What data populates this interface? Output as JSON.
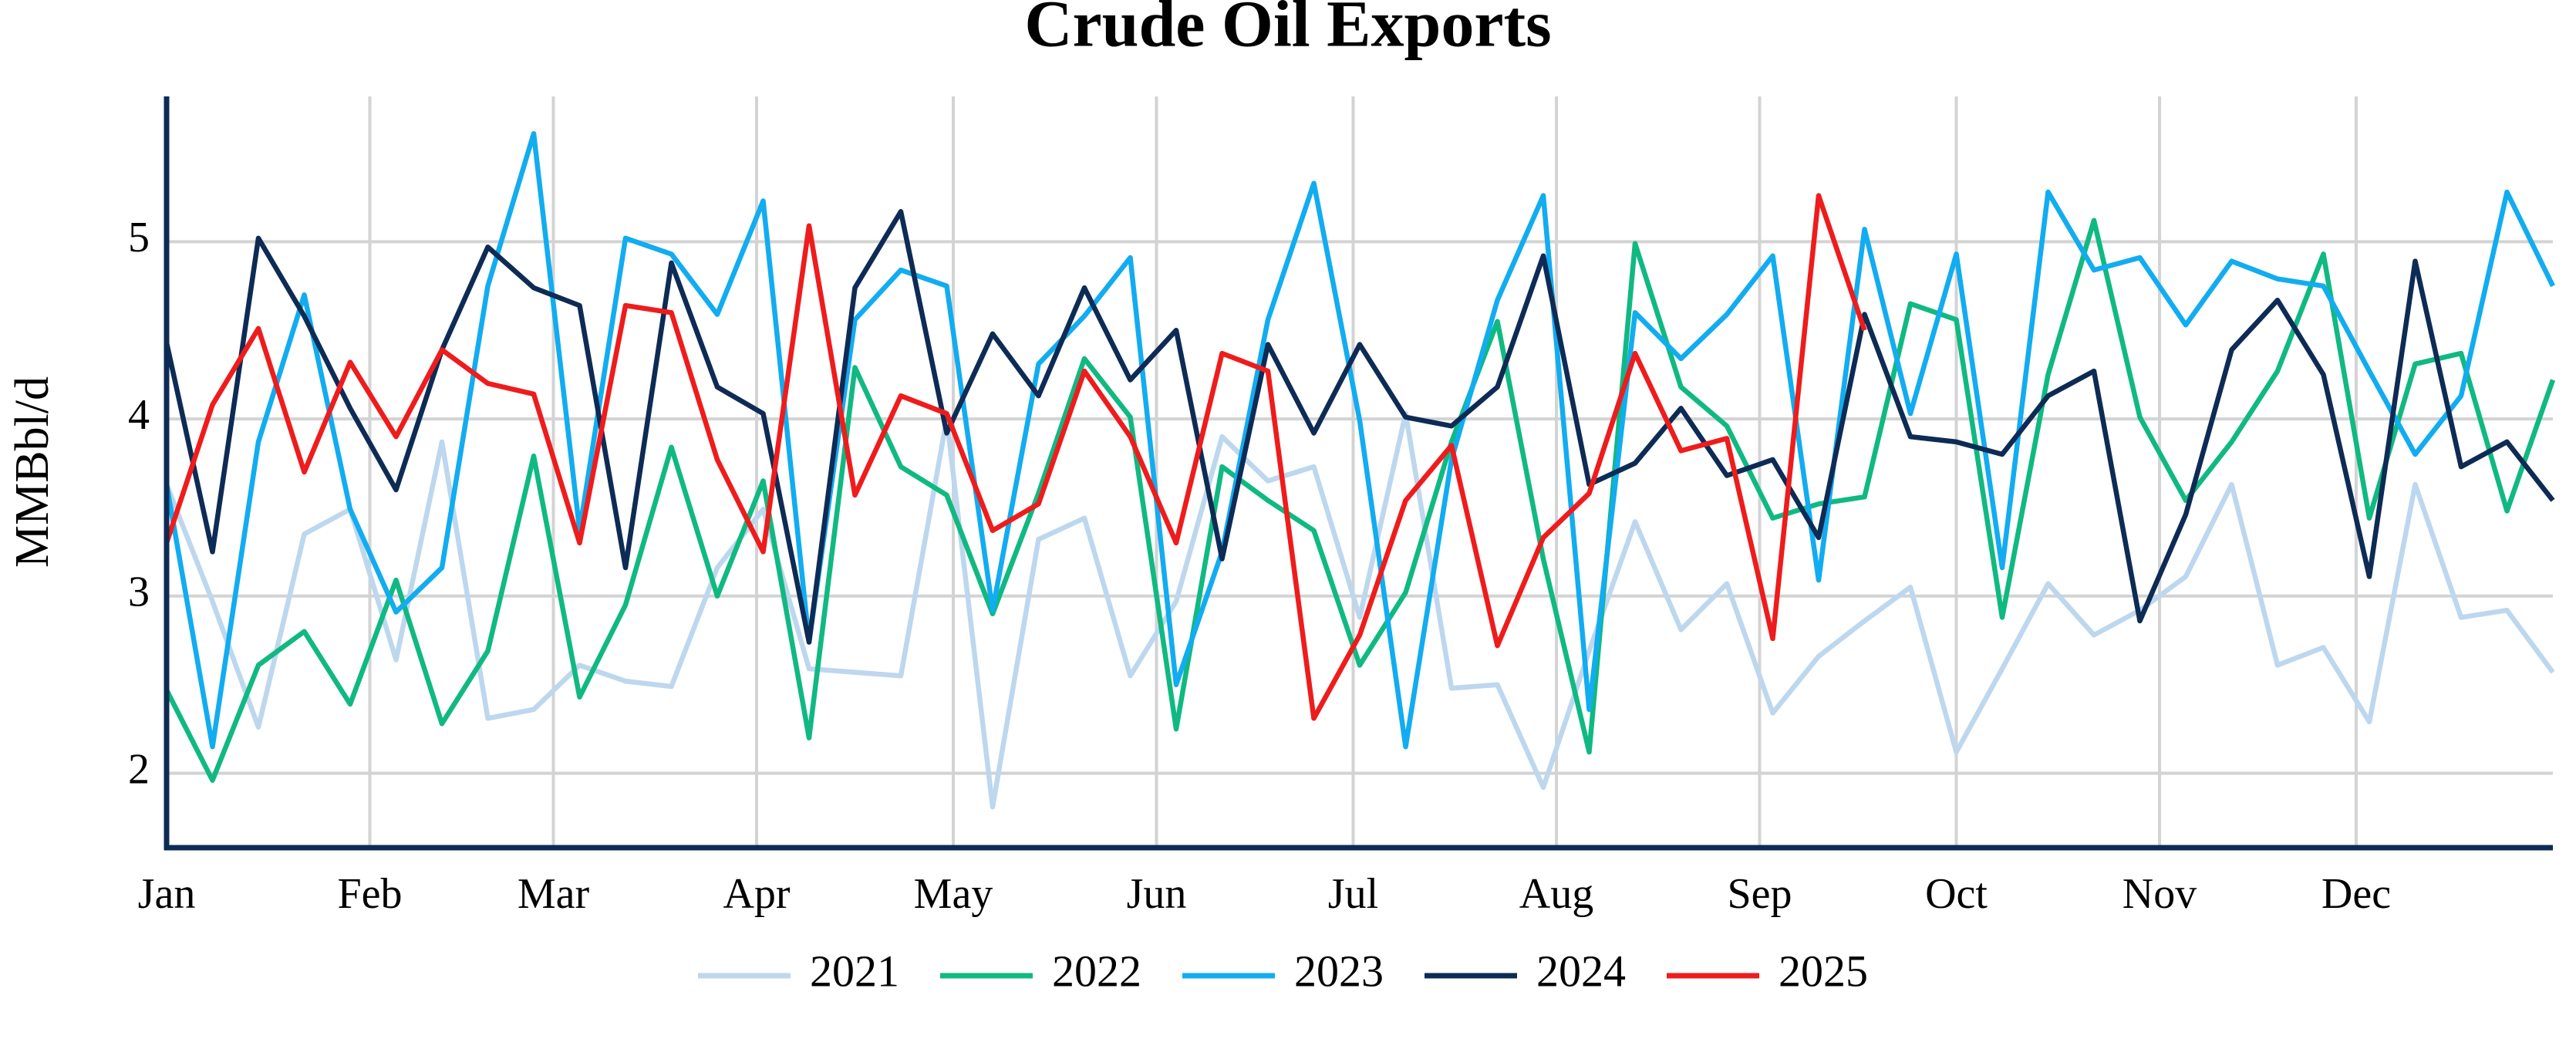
{
  "chart_data": {
    "type": "line",
    "title": "Crude Oil Exports",
    "y_label": "MMBbl/d",
    "x": [
      1,
      2,
      3,
      4,
      5,
      6,
      7,
      8,
      9,
      10,
      11,
      12,
      13,
      14,
      15,
      16,
      17,
      18,
      19,
      20,
      21,
      22,
      23,
      24,
      25,
      26,
      27,
      28,
      29,
      30,
      31,
      32,
      33,
      34,
      35,
      36,
      37,
      38,
      39,
      40,
      41,
      42,
      43,
      44,
      45,
      46,
      47,
      48,
      49,
      50,
      51,
      52,
      53
    ],
    "xlim": [
      1,
      53
    ],
    "xticks": [
      {
        "value": 1,
        "label": "Jan"
      },
      {
        "value": 5.4286,
        "label": "Feb"
      },
      {
        "value": 9.4286,
        "label": "Mar"
      },
      {
        "value": 13.857,
        "label": "Apr"
      },
      {
        "value": 18.143,
        "label": "May"
      },
      {
        "value": 22.571,
        "label": "Jun"
      },
      {
        "value": 26.857,
        "label": "Jul"
      },
      {
        "value": 31.286,
        "label": "Aug"
      },
      {
        "value": 35.714,
        "label": "Sep"
      },
      {
        "value": 40,
        "label": "Oct"
      },
      {
        "value": 44.429,
        "label": "Nov"
      },
      {
        "value": 48.714,
        "label": "Dec"
      }
    ],
    "ylim": [
      1.58,
      5.82
    ],
    "yticks": [
      2,
      3,
      4,
      5
    ],
    "grid": true,
    "legend": "bottom",
    "series": [
      {
        "name": "2021",
        "color": "#bdd7ee",
        "values": [
          3.63,
          2.97,
          2.26,
          3.35,
          3.49,
          2.64,
          3.87,
          2.31,
          2.36,
          2.61,
          2.52,
          2.49,
          3.16,
          3.49,
          2.59,
          2.57,
          2.55,
          4.0,
          1.81,
          3.32,
          3.44,
          2.55,
          2.97,
          3.9,
          3.65,
          3.73,
          2.88,
          4.03,
          2.48,
          2.5,
          1.92,
          2.69,
          3.42,
          2.81,
          3.07,
          2.34,
          2.66,
          2.86,
          3.05,
          2.12,
          2.59,
          3.07,
          2.78,
          2.92,
          3.11,
          3.63,
          2.61,
          2.71,
          2.29,
          3.63,
          2.88,
          2.92,
          2.57
        ]
      },
      {
        "name": "2022",
        "color": "#10b981",
        "values": [
          2.47,
          1.96,
          2.61,
          2.8,
          2.39,
          3.09,
          2.28,
          2.69,
          3.79,
          2.43,
          2.95,
          3.84,
          3.0,
          3.65,
          2.2,
          4.29,
          3.73,
          3.57,
          2.9,
          3.58,
          4.34,
          4.01,
          2.25,
          3.73,
          3.54,
          3.37,
          2.61,
          3.02,
          3.87,
          4.55,
          3.21,
          2.12,
          4.99,
          4.18,
          3.96,
          3.44,
          3.52,
          3.56,
          4.65,
          4.56,
          2.88,
          4.25,
          5.12,
          4.01,
          3.54,
          3.87,
          4.27,
          4.93,
          3.44,
          4.31,
          4.37,
          3.48,
          4.22
        ]
      },
      {
        "name": "2023",
        "color": "#12acf0",
        "values": [
          3.63,
          2.15,
          3.87,
          4.7,
          3.49,
          2.91,
          3.16,
          4.75,
          5.61,
          3.37,
          5.02,
          4.93,
          4.59,
          5.23,
          2.74,
          4.56,
          4.84,
          4.75,
          2.92,
          4.31,
          4.58,
          4.91,
          2.5,
          3.25,
          4.56,
          5.33,
          3.99,
          2.15,
          3.77,
          4.67,
          5.26,
          2.36,
          4.6,
          4.34,
          4.59,
          4.92,
          3.09,
          5.07,
          4.03,
          4.93,
          3.16,
          5.28,
          4.84,
          4.91,
          4.53,
          4.89,
          4.79,
          4.75,
          4.27,
          3.8,
          4.13,
          5.28,
          4.75
        ]
      },
      {
        "name": "2024",
        "color": "#0d2b55",
        "values": [
          4.43,
          3.25,
          5.02,
          4.58,
          4.06,
          3.6,
          4.39,
          4.97,
          4.74,
          4.64,
          3.16,
          4.88,
          4.18,
          4.03,
          2.74,
          4.74,
          5.17,
          3.92,
          4.48,
          4.13,
          4.74,
          4.22,
          4.5,
          3.21,
          4.42,
          3.92,
          4.42,
          4.01,
          3.96,
          4.18,
          4.92,
          3.63,
          3.75,
          4.06,
          3.68,
          3.77,
          3.33,
          4.59,
          3.9,
          3.87,
          3.8,
          4.13,
          4.27,
          2.86,
          3.46,
          4.39,
          4.67,
          4.25,
          3.11,
          4.89,
          3.73,
          3.87,
          3.54
        ]
      },
      {
        "name": "2025",
        "color": "#ee1c1c",
        "values": [
          3.3,
          4.08,
          4.51,
          3.7,
          4.32,
          3.9,
          4.39,
          4.2,
          4.14,
          3.3,
          4.64,
          4.6,
          3.77,
          3.25,
          5.09,
          3.57,
          4.13,
          4.03,
          3.37,
          3.52,
          4.27,
          3.9,
          3.3,
          4.37,
          4.27,
          2.31,
          2.78,
          3.54,
          3.85,
          2.72,
          3.33,
          3.58,
          4.37,
          3.82,
          3.89,
          2.76,
          5.26,
          4.5,
          null,
          null,
          null,
          null,
          null,
          null,
          null,
          null,
          null,
          null,
          null,
          null,
          null,
          null,
          null
        ]
      }
    ]
  }
}
